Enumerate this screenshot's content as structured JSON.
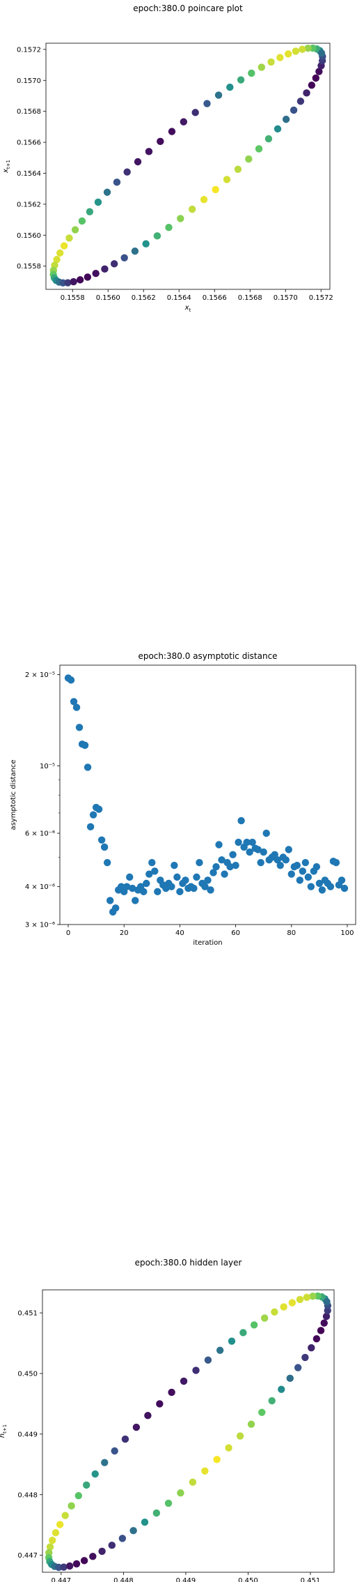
{
  "colormap": [
    "#440154",
    "#3b528b",
    "#21918c",
    "#5ec962",
    "#fde725"
  ],
  "chart_data": [
    {
      "type": "scatter",
      "title": "epoch:380.0 poincare plot",
      "xlabel": "x_t",
      "ylabel": "x_{t+1}",
      "xlim": [
        0.15565,
        0.15725
      ],
      "ylim": [
        0.15565,
        0.15724
      ],
      "xticks": [
        "0.1558",
        "0.1560",
        "0.1562",
        "0.1564",
        "0.1566",
        "0.1568",
        "0.1570",
        "0.1572"
      ],
      "yticks": [
        "0.1558",
        "0.1560",
        "0.1562",
        "0.1564",
        "0.1566",
        "0.1568",
        "0.1570",
        "0.1572"
      ],
      "ellipse": {
        "center_x": 0.15645,
        "center_y": 0.15645,
        "major": 0.00105,
        "minor": 0.00022,
        "angle_deg": 45,
        "n_points": 72
      },
      "grid": false,
      "colored_by": "viridis"
    },
    {
      "type": "scatter",
      "title": "epoch:380.0 asymptotic distance",
      "xlabel": "iteration",
      "ylabel": "asymptotic distance",
      "yscale": "log",
      "xlim": [
        -3,
        103
      ],
      "ylim": [
        3e-06,
        2.15e-05
      ],
      "xticks": [
        "0",
        "20",
        "40",
        "60",
        "80",
        "100"
      ],
      "yticks": [
        "2 × 10⁻⁵",
        "10⁻⁵",
        "6 × 10⁻⁶",
        "4 × 10⁻⁶",
        "3 × 10⁻⁶"
      ],
      "color": "#1f77b4",
      "x": [
        0,
        1,
        2,
        3,
        4,
        5,
        6,
        7,
        8,
        9,
        10,
        11,
        12,
        13,
        14,
        15,
        16,
        17,
        18,
        19,
        20,
        21,
        22,
        23,
        24,
        25,
        26,
        27,
        28,
        29,
        30,
        31,
        32,
        33,
        34,
        35,
        36,
        37,
        38,
        39,
        40,
        41,
        42,
        43,
        44,
        45,
        46,
        47,
        48,
        49,
        50,
        51,
        52,
        53,
        54,
        55,
        56,
        57,
        58,
        59,
        60,
        61,
        62,
        63,
        64,
        65,
        66,
        67,
        68,
        69,
        70,
        71,
        72,
        73,
        74,
        75,
        76,
        77,
        78,
        79,
        80,
        81,
        82,
        83,
        84,
        85,
        86,
        87,
        88,
        89,
        90,
        91,
        92,
        93,
        94,
        95,
        96,
        97,
        98,
        99
      ],
      "values": [
        1.95e-05,
        1.92e-05,
        1.63e-05,
        1.56e-05,
        1.34e-05,
        1.18e-05,
        1.17e-05,
        9.9e-06,
        6.3e-06,
        6.9e-06,
        7.3e-06,
        7.2e-06,
        5.7e-06,
        5.4e-06,
        4.8e-06,
        3.6e-06,
        3.3e-06,
        3.4e-06,
        3.9e-06,
        4e-06,
        3.85e-06,
        4e-06,
        4.3e-06,
        3.95e-06,
        3.6e-06,
        3.9e-06,
        4e-06,
        3.85e-06,
        4.1e-06,
        4.4e-06,
        4.8e-06,
        4.5e-06,
        3.85e-06,
        4.2e-06,
        4.05e-06,
        3.95e-06,
        4.1e-06,
        4e-06,
        4.7e-06,
        4.3e-06,
        3.85e-06,
        4.1e-06,
        4.2e-06,
        3.95e-06,
        4e-06,
        3.95e-06,
        4.3e-06,
        4.8e-06,
        4.1e-06,
        4e-06,
        4.2e-06,
        3.9e-06,
        4.45e-06,
        4.65e-06,
        5.5e-06,
        4.9e-06,
        4.4e-06,
        4.8e-06,
        4.65e-06,
        5.1e-06,
        4.7e-06,
        5.6e-06,
        6.6e-06,
        5.4e-06,
        5.6e-06,
        5.2e-06,
        5.6e-06,
        5.35e-06,
        5.3e-06,
        4.8e-06,
        5.2e-06,
        6e-06,
        4.9e-06,
        5e-06,
        5.1e-06,
        4.9e-06,
        4.7e-06,
        5e-06,
        4.9e-06,
        5.3e-06,
        4.4e-06,
        4.65e-06,
        4.7e-06,
        4.2e-06,
        4.5e-06,
        4.8e-06,
        4.3e-06,
        4e-06,
        4.5e-06,
        4.65e-06,
        4.1e-06,
        3.9e-06,
        4.2e-06,
        4.1e-06,
        4e-06,
        4.85e-06,
        4.8e-06,
        4.05e-06,
        4.2e-06,
        3.95e-06
      ],
      "grid": false
    },
    {
      "type": "scatter",
      "title": "epoch:380.0 hidden layer",
      "xlabel": "h_t",
      "ylabel": "h_{t+1}",
      "xlim": [
        0.4467,
        0.45138
      ],
      "ylim": [
        0.44672,
        0.45138
      ],
      "xticks": [
        "0.447",
        "0.448",
        "0.449",
        "0.450",
        "0.451"
      ],
      "yticks": [
        "0.447",
        "0.448",
        "0.449",
        "0.450",
        "0.451"
      ],
      "ellipse": {
        "center_x": 0.44904,
        "center_y": 0.44904,
        "major": 0.0031,
        "minor": 0.00065,
        "angle_deg": 45,
        "n_points": 72
      },
      "grid": false,
      "colored_by": "viridis"
    }
  ]
}
